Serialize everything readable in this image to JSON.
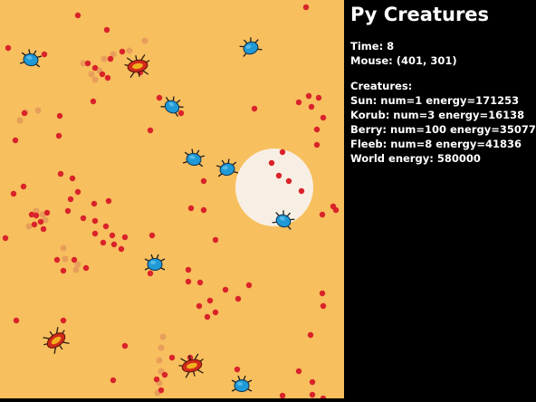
{
  "title": "Py Creatures",
  "colors": {
    "world_bg": "#f7bf5e",
    "sun": "#f8efe4",
    "berry": "#d9222a",
    "berry_seed": "#e2935a",
    "fleeb": "#1f9ad6",
    "korub": "#d22a1a",
    "korub_body": "#f2b01e"
  },
  "stats": {
    "time": "Time: 8",
    "mouse": "Mouse: (401, 301)"
  },
  "creatures": {
    "heading": "Creatures:",
    "lines": [
      "Sun: num=1 energy=171253",
      "Korub: num=3 energy=16138",
      "Berry: num=100 energy=350771",
      "Fleeb: num=8 energy=41836",
      "World energy: 580000"
    ]
  }
}
